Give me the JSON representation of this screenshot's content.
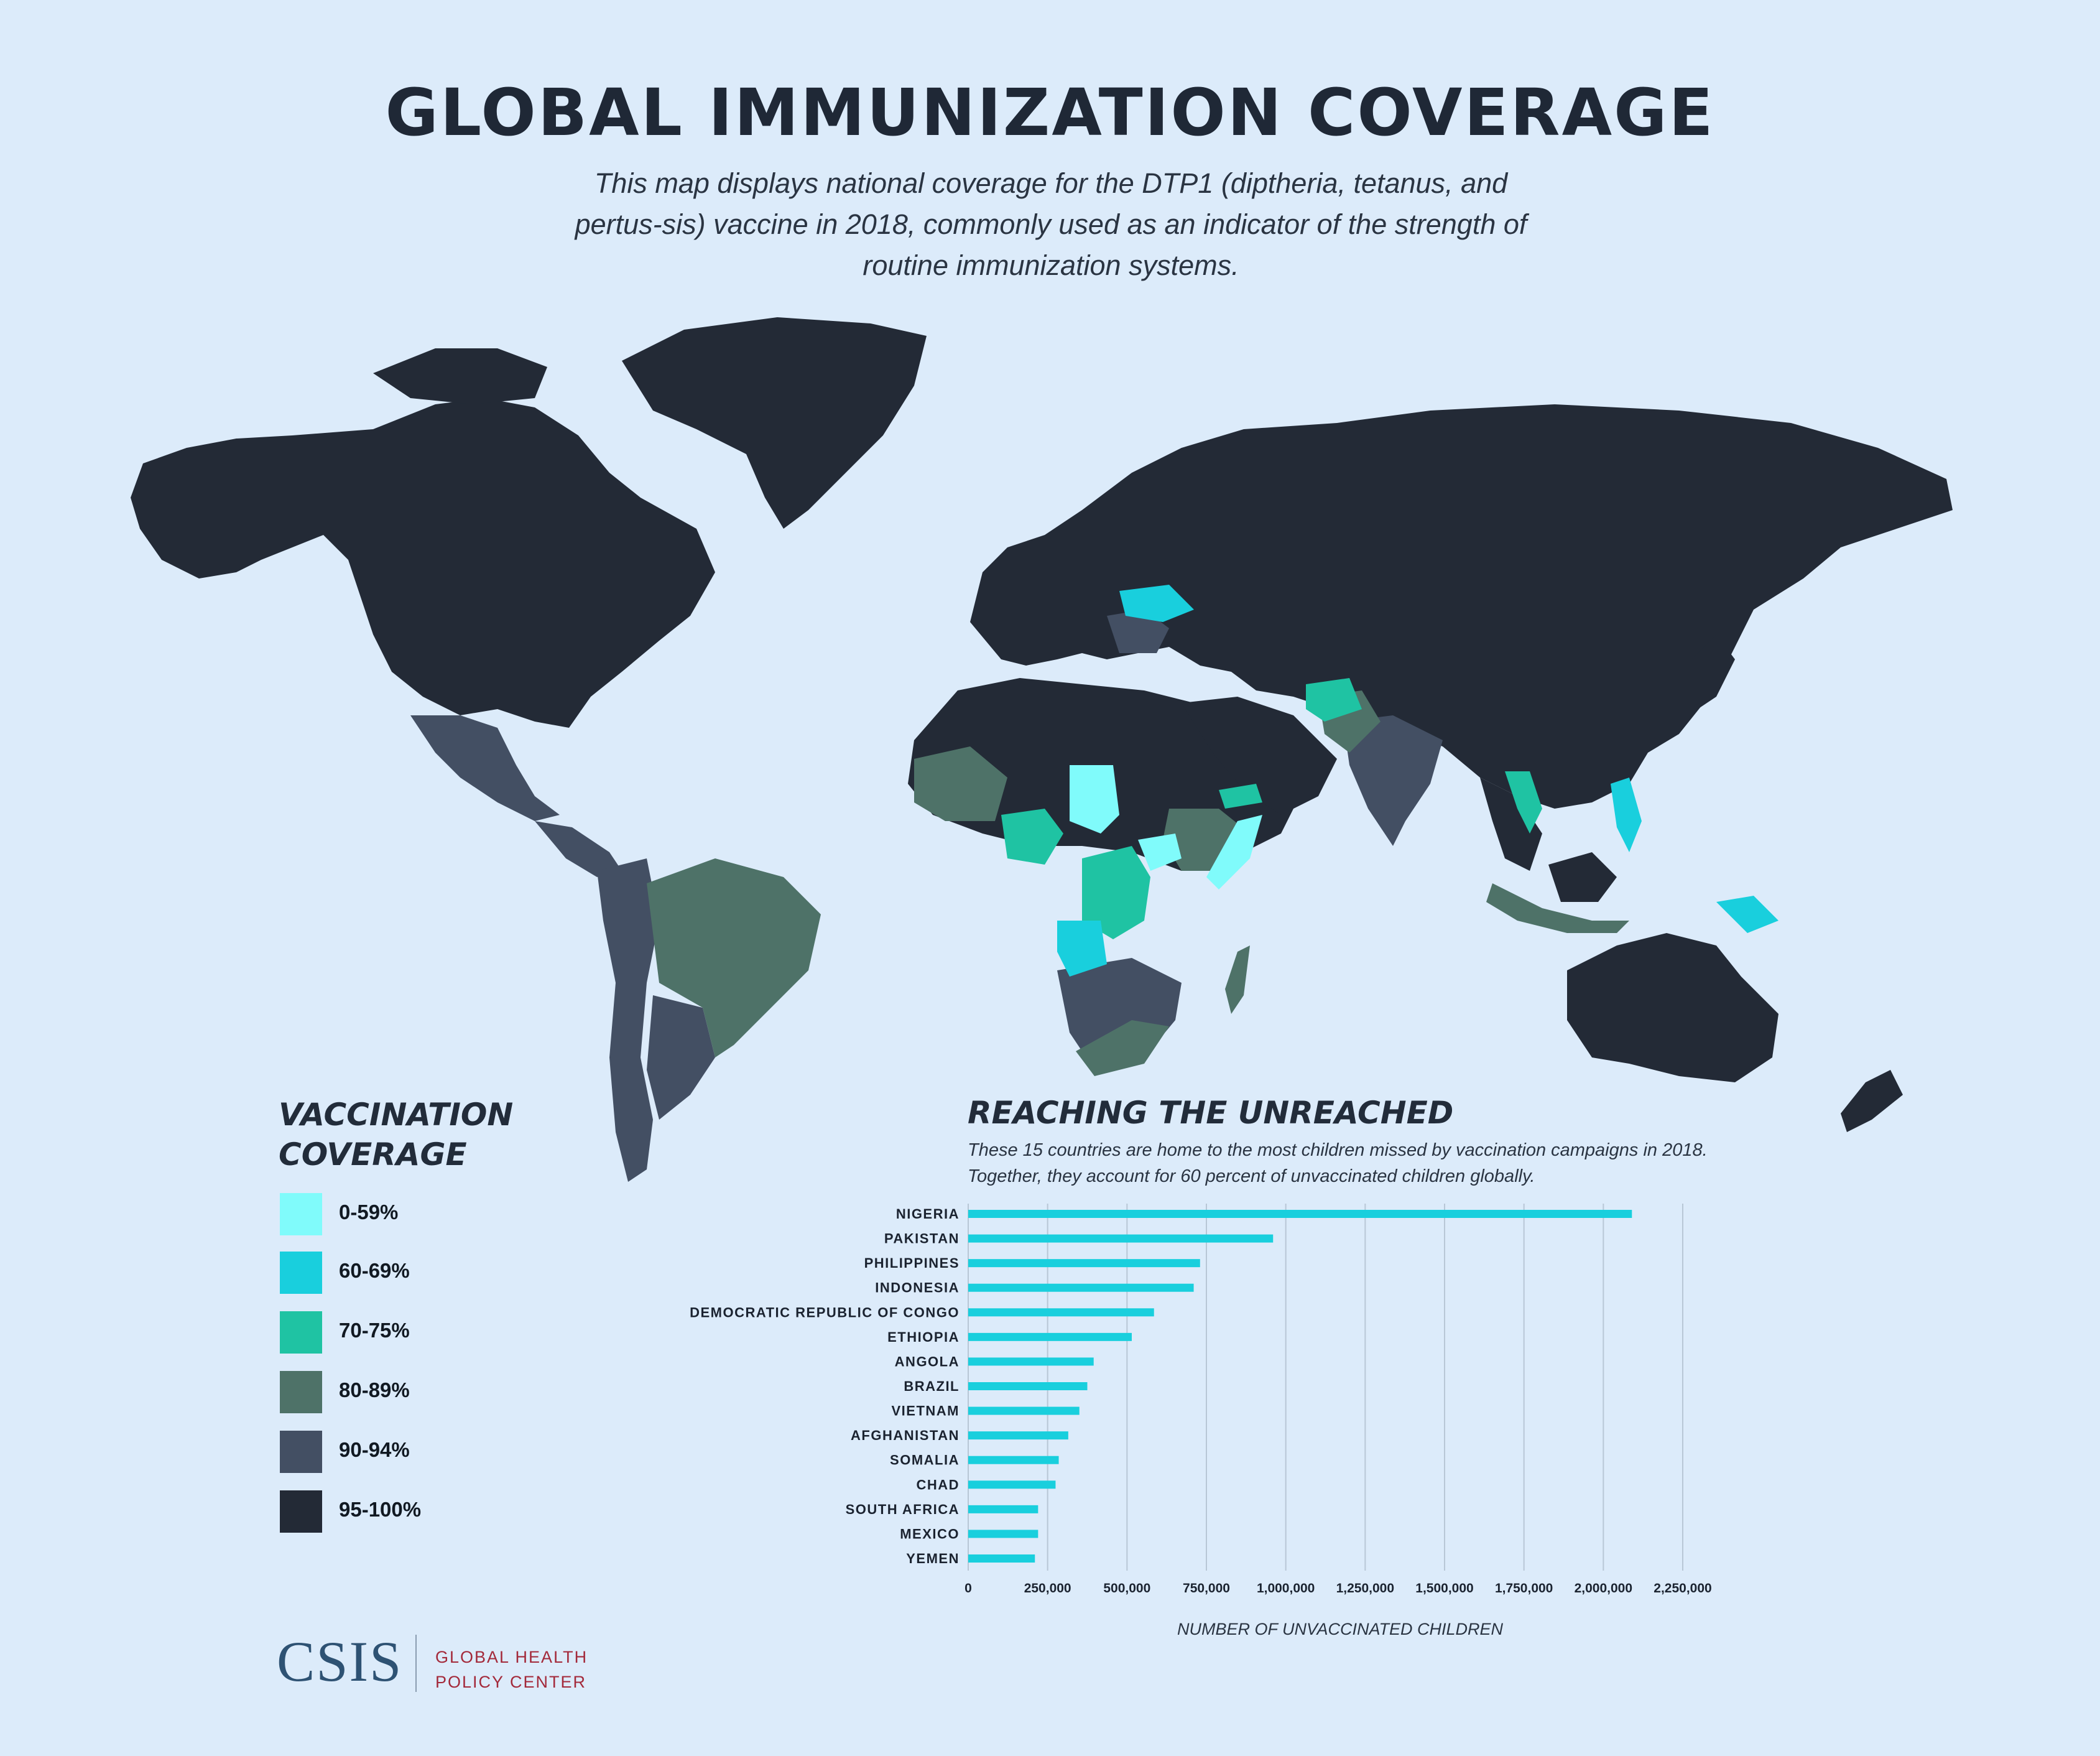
{
  "header": {
    "title": "GLOBAL IMMUNIZATION COVERAGE",
    "subtitle": "This map displays national coverage for the DTP1 (diptheria, tetanus, and pertus-sis) vaccine in 2018, commonly used as an indicator of the strength of routine immunization systems."
  },
  "legend": {
    "title": "VACCINATION COVERAGE",
    "items": [
      {
        "label": "0-59%",
        "color": "#80fbfb"
      },
      {
        "label": "60-69%",
        "color": "#19cfdd"
      },
      {
        "label": "70-75%",
        "color": "#1fc3a3"
      },
      {
        "label": "80-89%",
        "color": "#4e7268"
      },
      {
        "label": "90-94%",
        "color": "#434f63"
      },
      {
        "label": "95-100%",
        "color": "#232a36"
      }
    ]
  },
  "unreached": {
    "title": "REACHING THE UNREACHED",
    "description": "These 15 countries are home to the most children missed by vaccination campaigns in 2018. Together, they account for 60 percent of unvaccinated children globally."
  },
  "chart_data": {
    "type": "bar",
    "orientation": "horizontal",
    "categories": [
      "NIGERIA",
      "PAKISTAN",
      "PHILIPPINES",
      "INDONESIA",
      "DEMOCRATIC REPUBLIC OF CONGO",
      "ETHIOPIA",
      "ANGOLA",
      "BRAZIL",
      "VIETNAM",
      "AFGHANISTAN",
      "SOMALIA",
      "CHAD",
      "SOUTH AFRICA",
      "MEXICO",
      "YEMEN"
    ],
    "values": [
      2090000,
      960000,
      730000,
      710000,
      585000,
      515000,
      395000,
      375000,
      350000,
      315000,
      285000,
      275000,
      220000,
      220000,
      210000
    ],
    "xlabel": "NUMBER OF UNVACCINATED CHILDREN",
    "xlim": [
      0,
      2250000
    ],
    "xticks": [
      0,
      250000,
      500000,
      750000,
      1000000,
      1250000,
      1500000,
      1750000,
      2000000,
      2250000
    ],
    "xtick_labels": [
      "0",
      "250,000",
      "500,000",
      "750,000",
      "1,000,000",
      "1,250,000",
      "1,500,000",
      "1,750,000",
      "2,000,000",
      "2,250,000"
    ],
    "bar_color": "#19cfdd",
    "grid": true
  },
  "footer": {
    "logo": "CSIS",
    "center_line1": "GLOBAL HEALTH",
    "center_line2": "POLICY CENTER"
  }
}
